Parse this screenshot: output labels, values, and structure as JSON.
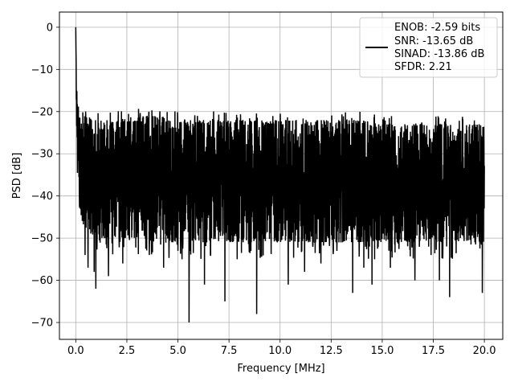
{
  "chart_data": {
    "type": "line",
    "title": "",
    "xlabel": "Frequency [MHz]",
    "ylabel": "PSD [dB]",
    "xlim": [
      -0.8,
      20.9
    ],
    "ylim": [
      -74,
      3.6
    ],
    "xticks": [
      0.0,
      2.5,
      5.0,
      7.5,
      10.0,
      12.5,
      15.0,
      17.5,
      20.0
    ],
    "xtick_labels": [
      "0.0",
      "2.5",
      "5.0",
      "7.5",
      "10.0",
      "12.5",
      "15.0",
      "17.5",
      "20.0"
    ],
    "yticks": [
      0,
      -10,
      -20,
      -30,
      -40,
      -50,
      -60,
      -70
    ],
    "ytick_labels": [
      "0",
      "−10",
      "−20",
      "−30",
      "−40",
      "−50",
      "−60",
      "−70"
    ],
    "grid": true,
    "legend_position": "top-right",
    "legend": [
      "ENOB: -2.59 bits",
      "SNR: -13.65 dB",
      "SINAD: -13.86 dB",
      "SFDR: 2.21"
    ],
    "series": [
      {
        "color": "#000000",
        "envelope": {
          "x": [
            0.0,
            0.05,
            0.1,
            0.2,
            0.3,
            0.5,
            1.0,
            2.0,
            3.0,
            4.0,
            5.0,
            6.0,
            7.0,
            8.0,
            9.0,
            10.0,
            11.0,
            12.0,
            13.0,
            14.0,
            15.0,
            16.0,
            17.0,
            18.0,
            19.0,
            20.0
          ],
          "upper": [
            0,
            -14,
            -17,
            -20,
            -20,
            -21,
            -22,
            -22,
            -21,
            -21,
            -22,
            -22,
            -22,
            -22,
            -22,
            -22,
            -22,
            -22,
            -22,
            -22,
            -23,
            -23,
            -23,
            -23,
            -23,
            -23
          ],
          "lower": [
            0,
            -32,
            -38,
            -42,
            -46,
            -48,
            -50,
            -50,
            -50,
            -51,
            -51,
            -51,
            -51,
            -51,
            -51,
            -51,
            -51,
            -51,
            -51,
            -51,
            -51,
            -51,
            -51,
            -51,
            -51,
            -51
          ]
        },
        "peak": {
          "x": 0.0,
          "y": 0
        },
        "spikes": [
          {
            "x": 0.45,
            "y": -54
          },
          {
            "x": 0.6,
            "y": -57
          },
          {
            "x": 0.9,
            "y": -58
          },
          {
            "x": 0.98,
            "y": -62
          },
          {
            "x": 1.6,
            "y": -59
          },
          {
            "x": 2.3,
            "y": -56
          },
          {
            "x": 3.6,
            "y": -54
          },
          {
            "x": 4.3,
            "y": -57
          },
          {
            "x": 5.2,
            "y": -55
          },
          {
            "x": 5.55,
            "y": -70
          },
          {
            "x": 6.3,
            "y": -61
          },
          {
            "x": 7.3,
            "y": -65
          },
          {
            "x": 7.9,
            "y": -55
          },
          {
            "x": 8.85,
            "y": -68
          },
          {
            "x": 10.4,
            "y": -61
          },
          {
            "x": 11.2,
            "y": -58
          },
          {
            "x": 12.0,
            "y": -56
          },
          {
            "x": 13.55,
            "y": -63
          },
          {
            "x": 14.1,
            "y": -57
          },
          {
            "x": 14.5,
            "y": -61
          },
          {
            "x": 15.4,
            "y": -57
          },
          {
            "x": 16.6,
            "y": -60
          },
          {
            "x": 17.8,
            "y": -60
          },
          {
            "x": 18.3,
            "y": -64
          },
          {
            "x": 19.9,
            "y": -63
          }
        ]
      }
    ]
  }
}
